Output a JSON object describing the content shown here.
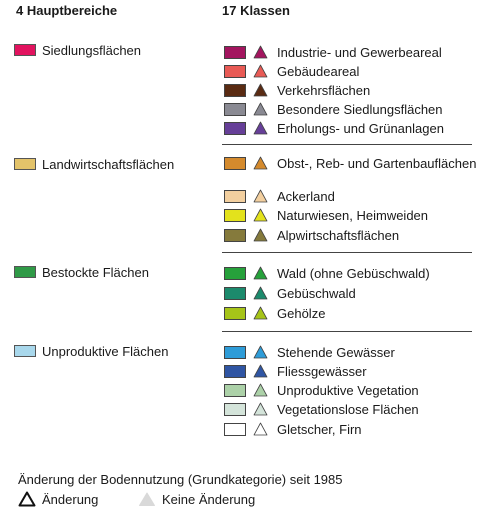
{
  "headers": {
    "left": "4 Hauptbereiche",
    "right": "17 Klassen"
  },
  "main_categories": [
    {
      "label": "Siedlungsflächen",
      "color": "#e2135f"
    },
    {
      "label": "Landwirtschaftsflächen",
      "color": "#e3c36a"
    },
    {
      "label": "Bestockte Flächen",
      "color": "#2f9a47"
    },
    {
      "label": "Unproduktive Flächen",
      "color": "#a9d8ec"
    }
  ],
  "classes": [
    {
      "label": "Industrie- und Gewerbeareal",
      "color": "#a3155f"
    },
    {
      "label": "Gebäudeareal",
      "color": "#e85a55"
    },
    {
      "label": "Verkehrsflächen",
      "color": "#5a2b13"
    },
    {
      "label": "Besondere Siedlungsflächen",
      "color": "#8a8a93"
    },
    {
      "label": "Erholungs- und Grünanlagen",
      "color": "#663f98"
    },
    {
      "label": "Obst-, Reb- und Gartenbauflächen",
      "color": "#d48a2d"
    },
    {
      "label": "Ackerland",
      "color": "#f2cf9f"
    },
    {
      "label": "Naturwiesen, Heimweiden",
      "color": "#e3e21c"
    },
    {
      "label": "Alpwirtschaftsflächen",
      "color": "#857a3c"
    },
    {
      "label": "Wald (ohne Gebüschwald)",
      "color": "#26a13b"
    },
    {
      "label": "Gebüschwald",
      "color": "#1c8a6c"
    },
    {
      "label": "Gehölze",
      "color": "#a6c418"
    },
    {
      "label": "Stehende Gewässer",
      "color": "#2e9cd8"
    },
    {
      "label": "Fliessgewässer",
      "color": "#2f55a3"
    },
    {
      "label": "Unproduktive Vegetation",
      "color": "#acd1a8"
    },
    {
      "label": "Vegetationslose Flächen",
      "color": "#d4e4da"
    },
    {
      "label": "Gletscher, Firn",
      "color": "#ffffff"
    }
  ],
  "legend": {
    "title": "Änderung der Bodennutzung (Grundkategorie) seit 1985",
    "change": "Änderung",
    "no_change": "Keine Änderung"
  }
}
